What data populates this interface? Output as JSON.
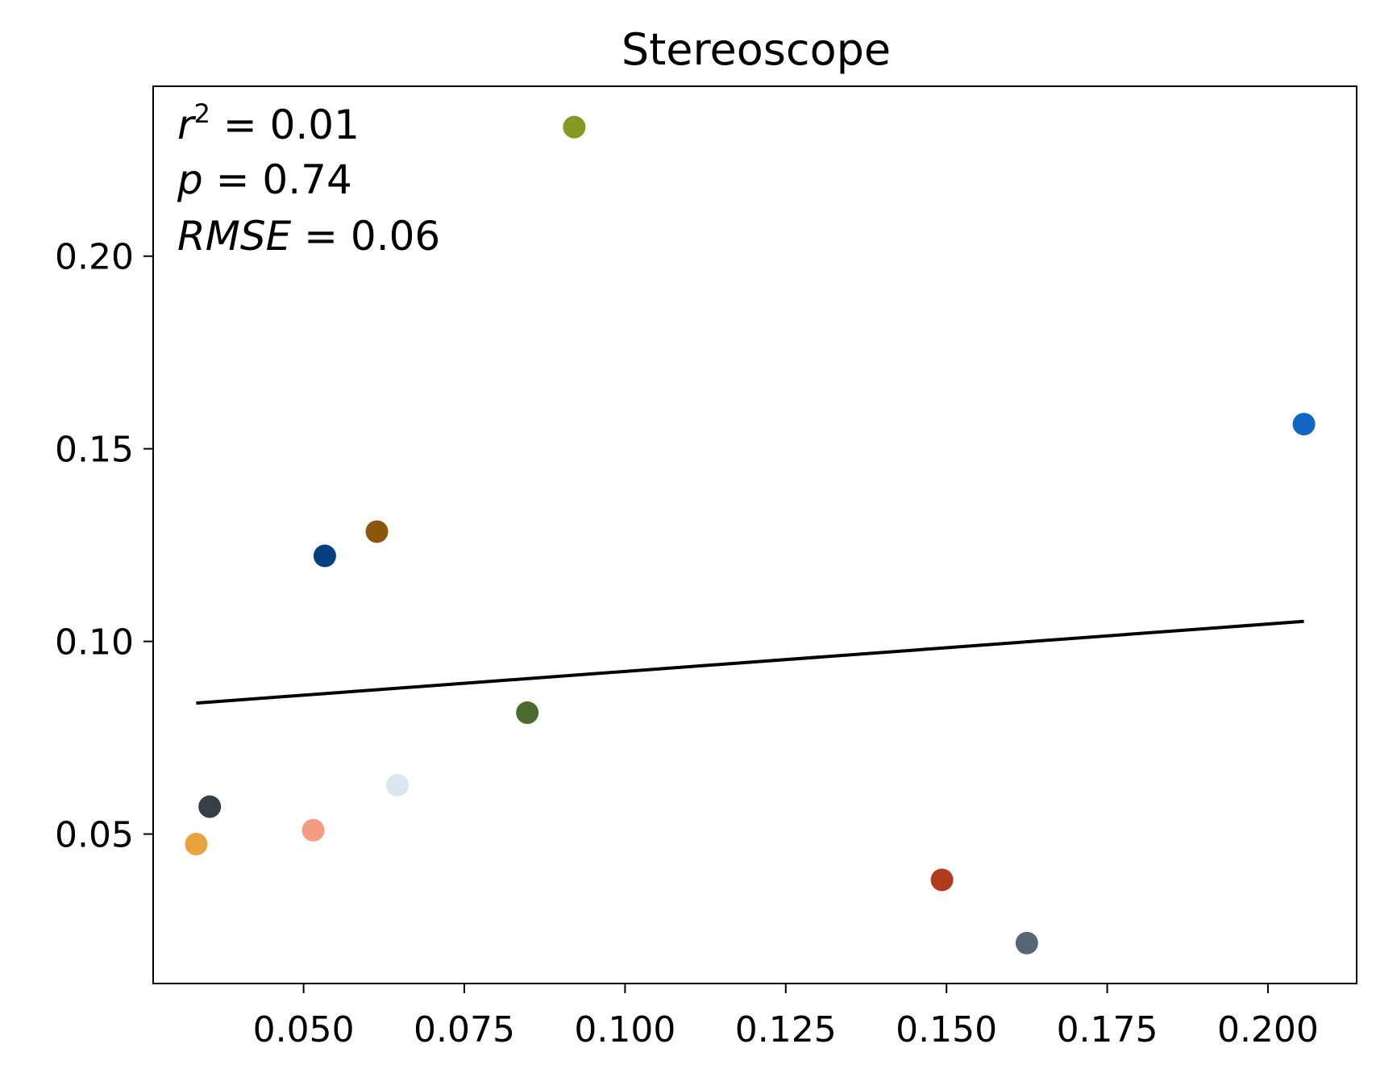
{
  "chart_data": {
    "type": "scatter",
    "title": "Stereoscope",
    "xlabel": "",
    "ylabel": "",
    "xlim": [
      0.0266,
      0.2138
    ],
    "ylim": [
      0.0112,
      0.2441
    ],
    "xticks": [
      {
        "value": 0.05,
        "label": "0.050"
      },
      {
        "value": 0.075,
        "label": "0.075"
      },
      {
        "value": 0.1,
        "label": "0.100"
      },
      {
        "value": 0.125,
        "label": "0.125"
      },
      {
        "value": 0.15,
        "label": "0.150"
      },
      {
        "value": 0.175,
        "label": "0.175"
      },
      {
        "value": 0.2,
        "label": "0.200"
      }
    ],
    "yticks": [
      {
        "value": 0.05,
        "label": "0.05"
      },
      {
        "value": 0.1,
        "label": "0.10"
      },
      {
        "value": 0.15,
        "label": "0.15"
      },
      {
        "value": 0.2,
        "label": "0.20"
      }
    ],
    "grid": false,
    "points": [
      {
        "x": 0.0921,
        "y": 0.2335,
        "color": "#869922"
      },
      {
        "x": 0.2056,
        "y": 0.1564,
        "color": "#1166c4"
      },
      {
        "x": 0.0614,
        "y": 0.1285,
        "color": "#8b560b"
      },
      {
        "x": 0.0533,
        "y": 0.1222,
        "color": "#003f80"
      },
      {
        "x": 0.0848,
        "y": 0.0815,
        "color": "#4b6a2e"
      },
      {
        "x": 0.0646,
        "y": 0.0627,
        "color": "#dce6f0"
      },
      {
        "x": 0.0354,
        "y": 0.0571,
        "color": "#383e46"
      },
      {
        "x": 0.0515,
        "y": 0.051,
        "color": "#f59b82"
      },
      {
        "x": 0.0333,
        "y": 0.0474,
        "color": "#eaa23e"
      },
      {
        "x": 0.1493,
        "y": 0.0381,
        "color": "#b03c1c"
      },
      {
        "x": 0.1625,
        "y": 0.0217,
        "color": "#566677"
      }
    ],
    "fit_line": {
      "x": [
        0.0333,
        0.2056
      ],
      "y": [
        0.084,
        0.1052
      ],
      "color": "#000000"
    },
    "annotations": {
      "r2_label": "r",
      "r2_exponent": "2",
      "r2_value": " = 0.01",
      "p_label": "p",
      "p_value": " = 0.74",
      "rmse_label": "RMSE",
      "rmse_value": " = 0.06"
    }
  }
}
